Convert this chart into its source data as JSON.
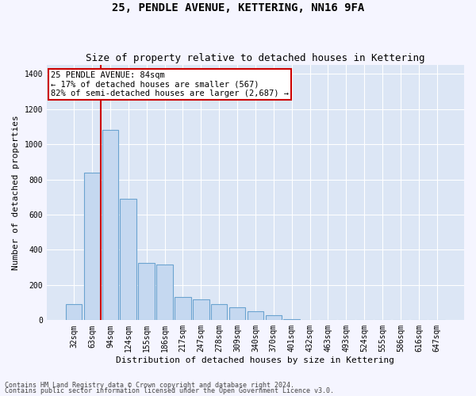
{
  "title": "25, PENDLE AVENUE, KETTERING, NN16 9FA",
  "subtitle": "Size of property relative to detached houses in Kettering",
  "xlabel": "Distribution of detached houses by size in Kettering",
  "ylabel": "Number of detached properties",
  "bar_color": "#c5d8f0",
  "bar_edge_color": "#6ba3d0",
  "bg_color": "#dce6f5",
  "grid_color": "#ffffff",
  "categories": [
    "32sqm",
    "63sqm",
    "94sqm",
    "124sqm",
    "155sqm",
    "186sqm",
    "217sqm",
    "247sqm",
    "278sqm",
    "309sqm",
    "340sqm",
    "370sqm",
    "401sqm",
    "432sqm",
    "463sqm",
    "493sqm",
    "524sqm",
    "555sqm",
    "586sqm",
    "616sqm",
    "647sqm"
  ],
  "values": [
    90,
    840,
    1080,
    690,
    325,
    315,
    130,
    120,
    90,
    75,
    50,
    30,
    5,
    0,
    0,
    0,
    0,
    0,
    0,
    0,
    0
  ],
  "vline_x": 1.5,
  "vline_color": "#cc0000",
  "annotation_text": "25 PENDLE AVENUE: 84sqm\n← 17% of detached houses are smaller (567)\n82% of semi-detached houses are larger (2,687) →",
  "annotation_box_facecolor": "#ffffff",
  "annotation_box_edgecolor": "#cc0000",
  "footnote1": "Contains HM Land Registry data © Crown copyright and database right 2024.",
  "footnote2": "Contains public sector information licensed under the Open Government Licence v3.0.",
  "ylim": [
    0,
    1450
  ],
  "yticks": [
    0,
    200,
    400,
    600,
    800,
    1000,
    1200,
    1400
  ],
  "fig_facecolor": "#f5f5ff",
  "title_fontsize": 10,
  "subtitle_fontsize": 9,
  "tick_fontsize": 7,
  "ylabel_fontsize": 8,
  "xlabel_fontsize": 8,
  "annot_fontsize": 7.5
}
